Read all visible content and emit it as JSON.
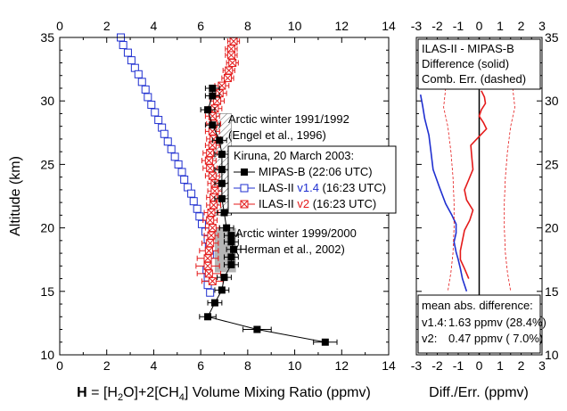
{
  "chart_data": [
    {
      "type": "scatter",
      "xlabel_parts": {
        "bold": "H",
        "rest": " = [H",
        "sub1": "2",
        "mid": "O]+2[CH",
        "sub2": "4",
        "tail": "] Volume Mixing Ratio (ppmv)"
      },
      "ylabel": "Altitude (km)",
      "xlim": [
        0,
        14
      ],
      "ylim": [
        10,
        35
      ],
      "xticks": [
        "0",
        "2",
        "4",
        "6",
        "8",
        "10",
        "12",
        "14"
      ],
      "yticks": [
        "10",
        "15",
        "20",
        "25",
        "30",
        "35"
      ],
      "ref_boxes": [
        {
          "label_lines": [
            "Arctic winter 1991/1992",
            "(Engel et al., 1996)"
          ],
          "x_range": [
            6.5,
            7.3
          ],
          "alt_range": [
            21.0,
            29.0
          ],
          "style": "hatched"
        },
        {
          "label_lines": [
            "Arctic winter 1999/2000",
            "(Herman et al., 2002)"
          ],
          "x_range": [
            6.6,
            7.5
          ],
          "alt_range": [
            16.5,
            20.0
          ],
          "style": "gray"
        }
      ],
      "legend": {
        "title": "Kiruna, 20 March 2003:",
        "entries": [
          {
            "series": "mipas",
            "parts": [
              "MIPAS-B (22:06 UTC)"
            ]
          },
          {
            "series": "ilas14",
            "parts": [
              "ILAS-II ",
              "v1.4",
              " (16:23 UTC)"
            ]
          },
          {
            "series": "ilas2",
            "parts": [
              "ILAS-II ",
              "v2",
              " (16:23 UTC)"
            ]
          }
        ]
      },
      "series": [
        {
          "id": "mipas",
          "name": "MIPAS-B (22:06 UTC)",
          "color": "#000000",
          "marker": "filled-square",
          "points": [
            {
              "y": 11.0,
              "x": 11.3,
              "err": 0.5
            },
            {
              "y": 12.0,
              "x": 8.4,
              "err": 0.6
            },
            {
              "y": 13.0,
              "x": 6.3,
              "err": 0.35
            },
            {
              "y": 14.1,
              "x": 6.6,
              "err": 0.3
            },
            {
              "y": 15.1,
              "x": 6.9,
              "err": 0.3
            },
            {
              "y": 16.1,
              "x": 7.0,
              "err": 0.3
            },
            {
              "y": 17.1,
              "x": 7.3,
              "err": 0.3
            },
            {
              "y": 17.7,
              "x": 7.3,
              "err": 0.3
            },
            {
              "y": 18.3,
              "x": 7.4,
              "err": 0.3
            },
            {
              "y": 18.9,
              "x": 7.3,
              "err": 0.3
            },
            {
              "y": 19.4,
              "x": 7.3,
              "err": 0.3
            },
            {
              "y": 20.0,
              "x": 7.1,
              "err": 0.3
            },
            {
              "y": 21.2,
              "x": 7.0,
              "err": 0.3
            },
            {
              "y": 22.3,
              "x": 6.9,
              "err": 0.3
            },
            {
              "y": 23.5,
              "x": 6.9,
              "err": 0.3
            },
            {
              "y": 24.6,
              "x": 6.9,
              "err": 0.3
            },
            {
              "y": 25.8,
              "x": 6.9,
              "err": 0.3
            },
            {
              "y": 26.9,
              "x": 6.8,
              "err": 0.3
            },
            {
              "y": 28.1,
              "x": 6.5,
              "err": 0.3
            },
            {
              "y": 29.3,
              "x": 6.3,
              "err": 0.3
            },
            {
              "y": 30.4,
              "x": 6.5,
              "err": 0.3
            },
            {
              "y": 31.0,
              "x": 6.5,
              "err": 0.3
            }
          ]
        },
        {
          "id": "ilas14",
          "name": "ILAS-II v1.4 (16:23 UTC)",
          "color": "#1f2fd0",
          "marker": "open-square",
          "points": [
            {
              "y": 35.0,
              "x": 2.6
            },
            {
              "y": 34.4,
              "x": 2.7
            },
            {
              "y": 33.8,
              "x": 2.9
            },
            {
              "y": 33.2,
              "x": 3.05
            },
            {
              "y": 32.6,
              "x": 3.2
            },
            {
              "y": 32.1,
              "x": 3.35
            },
            {
              "y": 31.5,
              "x": 3.5
            },
            {
              "y": 30.9,
              "x": 3.65
            },
            {
              "y": 30.3,
              "x": 3.75
            },
            {
              "y": 29.7,
              "x": 3.9
            },
            {
              "y": 29.1,
              "x": 4.05
            },
            {
              "y": 28.5,
              "x": 4.2
            },
            {
              "y": 27.9,
              "x": 4.35
            },
            {
              "y": 27.4,
              "x": 4.45
            },
            {
              "y": 26.8,
              "x": 4.6
            },
            {
              "y": 26.2,
              "x": 4.75
            },
            {
              "y": 25.6,
              "x": 4.9
            },
            {
              "y": 25.0,
              "x": 5.05
            },
            {
              "y": 24.4,
              "x": 5.2
            },
            {
              "y": 23.8,
              "x": 5.3
            },
            {
              "y": 23.2,
              "x": 5.45
            },
            {
              "y": 22.7,
              "x": 5.6
            },
            {
              "y": 22.1,
              "x": 5.7
            },
            {
              "y": 21.5,
              "x": 5.85
            },
            {
              "y": 20.9,
              "x": 5.95
            },
            {
              "y": 20.3,
              "x": 6.05
            },
            {
              "y": 19.7,
              "x": 6.2
            },
            {
              "y": 19.1,
              "x": 6.3
            },
            {
              "y": 18.5,
              "x": 6.35
            },
            {
              "y": 17.9,
              "x": 6.4
            },
            {
              "y": 17.3,
              "x": 6.3
            },
            {
              "y": 16.7,
              "x": 6.25
            },
            {
              "y": 16.1,
              "x": 6.3
            },
            {
              "y": 15.5,
              "x": 6.3
            },
            {
              "y": 14.9,
              "x": 6.4
            }
          ]
        },
        {
          "id": "ilas2",
          "name": "ILAS-II v2 (16:23 UTC)",
          "color": "#e41a1a",
          "marker": "boxed-cross",
          "points": [
            {
              "y": 34.7,
              "x": 7.4,
              "err": 0.25
            },
            {
              "y": 34.1,
              "x": 7.3,
              "err": 0.25
            },
            {
              "y": 33.6,
              "x": 7.3,
              "err": 0.25
            },
            {
              "y": 33.0,
              "x": 7.35,
              "err": 0.25
            },
            {
              "y": 32.4,
              "x": 7.2,
              "err": 0.25
            },
            {
              "y": 31.8,
              "x": 7.15,
              "err": 0.25
            },
            {
              "y": 31.2,
              "x": 6.9,
              "err": 0.3
            },
            {
              "y": 30.6,
              "x": 6.8,
              "err": 0.3
            },
            {
              "y": 30.0,
              "x": 6.7,
              "err": 0.3
            },
            {
              "y": 29.4,
              "x": 6.6,
              "err": 0.3
            },
            {
              "y": 28.8,
              "x": 6.5,
              "err": 0.3
            },
            {
              "y": 28.2,
              "x": 6.55,
              "err": 0.3
            },
            {
              "y": 27.6,
              "x": 6.5,
              "err": 0.3
            },
            {
              "y": 27.0,
              "x": 6.55,
              "err": 0.3
            },
            {
              "y": 26.5,
              "x": 6.5,
              "err": 0.3
            },
            {
              "y": 25.9,
              "x": 6.4,
              "err": 0.3
            },
            {
              "y": 25.3,
              "x": 6.35,
              "err": 0.3
            },
            {
              "y": 24.7,
              "x": 6.4,
              "err": 0.3
            },
            {
              "y": 24.1,
              "x": 6.5,
              "err": 0.3
            },
            {
              "y": 23.5,
              "x": 6.6,
              "err": 0.3
            },
            {
              "y": 22.9,
              "x": 6.6,
              "err": 0.3
            },
            {
              "y": 22.4,
              "x": 6.55,
              "err": 0.3
            },
            {
              "y": 21.8,
              "x": 6.55,
              "err": 0.3
            },
            {
              "y": 21.2,
              "x": 6.45,
              "err": 0.3
            },
            {
              "y": 20.6,
              "x": 6.4,
              "err": 0.3
            },
            {
              "y": 20.0,
              "x": 6.5,
              "err": 0.3
            },
            {
              "y": 19.4,
              "x": 6.45,
              "err": 0.3
            },
            {
              "y": 18.8,
              "x": 6.4,
              "err": 0.35
            },
            {
              "y": 18.2,
              "x": 6.35,
              "err": 0.4
            },
            {
              "y": 17.6,
              "x": 6.3,
              "err": 0.45
            },
            {
              "y": 17.0,
              "x": 6.3,
              "err": 0.5
            },
            {
              "y": 16.4,
              "x": 6.35,
              "err": 0.5
            },
            {
              "y": 15.8,
              "x": 6.5,
              "err": 0.45
            }
          ]
        }
      ]
    },
    {
      "type": "line",
      "xlabel": "Diff./Err. (ppmv)",
      "xlim": [
        -3,
        3
      ],
      "ylim": [
        10,
        35
      ],
      "xticks": [
        "-3",
        "-2",
        "-1",
        "0",
        "1",
        "2",
        "3"
      ],
      "yticks": [
        "10",
        "15",
        "20",
        "25",
        "30",
        "35"
      ],
      "header_box": [
        "ILAS-II - MIPAS-B",
        "Difference (solid)",
        "Comb. Err. (dashed)"
      ],
      "mean_box": {
        "title": "mean abs. difference:",
        "lines": [
          {
            "label": "v1.4:",
            "value": "1.63 ppmv (28.4%)",
            "color": "#1f2fd0"
          },
          {
            "label": "v2:",
            "value": "0.47 ppmv ( 7.0%)",
            "color": "#e41a1a"
          }
        ]
      },
      "series": [
        {
          "id": "diff_v14",
          "color": "#1f2fd0",
          "style": "solid",
          "points": [
            [
              -2.8,
              30.5
            ],
            [
              -2.7,
              29.6
            ],
            [
              -2.6,
              28.6
            ],
            [
              -2.4,
              27.3
            ],
            [
              -2.3,
              26.0
            ],
            [
              -2.2,
              24.6
            ],
            [
              -1.9,
              23.2
            ],
            [
              -1.6,
              21.9
            ],
            [
              -1.3,
              21.0
            ],
            [
              -1.1,
              20.3
            ],
            [
              -1.1,
              19.6
            ],
            [
              -1.2,
              18.9
            ],
            [
              -1.1,
              18.1
            ],
            [
              -1.0,
              17.5
            ],
            [
              -0.9,
              16.8
            ],
            [
              -0.8,
              16.0
            ],
            [
              -0.6,
              15.0
            ]
          ]
        },
        {
          "id": "diff_v2",
          "color": "#e41a1a",
          "style": "solid",
          "points": [
            [
              0.1,
              30.8
            ],
            [
              0.25,
              30.3
            ],
            [
              0.3,
              29.8
            ],
            [
              0.1,
              29.3
            ],
            [
              0.0,
              28.8
            ],
            [
              0.2,
              28.3
            ],
            [
              0.35,
              27.8
            ],
            [
              0.0,
              27.2
            ],
            [
              -0.4,
              26.5
            ],
            [
              -0.35,
              25.5
            ],
            [
              -0.3,
              24.6
            ],
            [
              -0.5,
              23.8
            ],
            [
              -0.7,
              23.0
            ],
            [
              -0.6,
              22.2
            ],
            [
              -0.3,
              21.4
            ],
            [
              -0.45,
              20.6
            ],
            [
              -0.7,
              19.8
            ],
            [
              -0.8,
              19.0
            ],
            [
              -0.9,
              18.2
            ],
            [
              -0.9,
              17.5
            ],
            [
              -0.7,
              16.8
            ],
            [
              -0.5,
              16.0
            ]
          ]
        },
        {
          "id": "err_pos",
          "color": "#e41a1a",
          "style": "dashed",
          "points": [
            [
              1.6,
              31.0
            ],
            [
              1.7,
              29.5
            ],
            [
              1.5,
              28.0
            ],
            [
              1.35,
              26.0
            ],
            [
              1.25,
              24.0
            ],
            [
              1.2,
              22.0
            ],
            [
              1.2,
              20.0
            ],
            [
              1.25,
              18.0
            ],
            [
              1.35,
              16.5
            ],
            [
              1.5,
              15.0
            ]
          ]
        },
        {
          "id": "err_neg",
          "color": "#e41a1a",
          "style": "dashed",
          "points": [
            [
              -1.6,
              31.0
            ],
            [
              -1.7,
              29.5
            ],
            [
              -1.5,
              28.0
            ],
            [
              -1.35,
              26.0
            ],
            [
              -1.25,
              24.0
            ],
            [
              -1.2,
              22.0
            ],
            [
              -1.2,
              20.0
            ],
            [
              -1.25,
              18.0
            ],
            [
              -1.35,
              16.5
            ],
            [
              -1.5,
              15.0
            ]
          ]
        }
      ]
    }
  ]
}
